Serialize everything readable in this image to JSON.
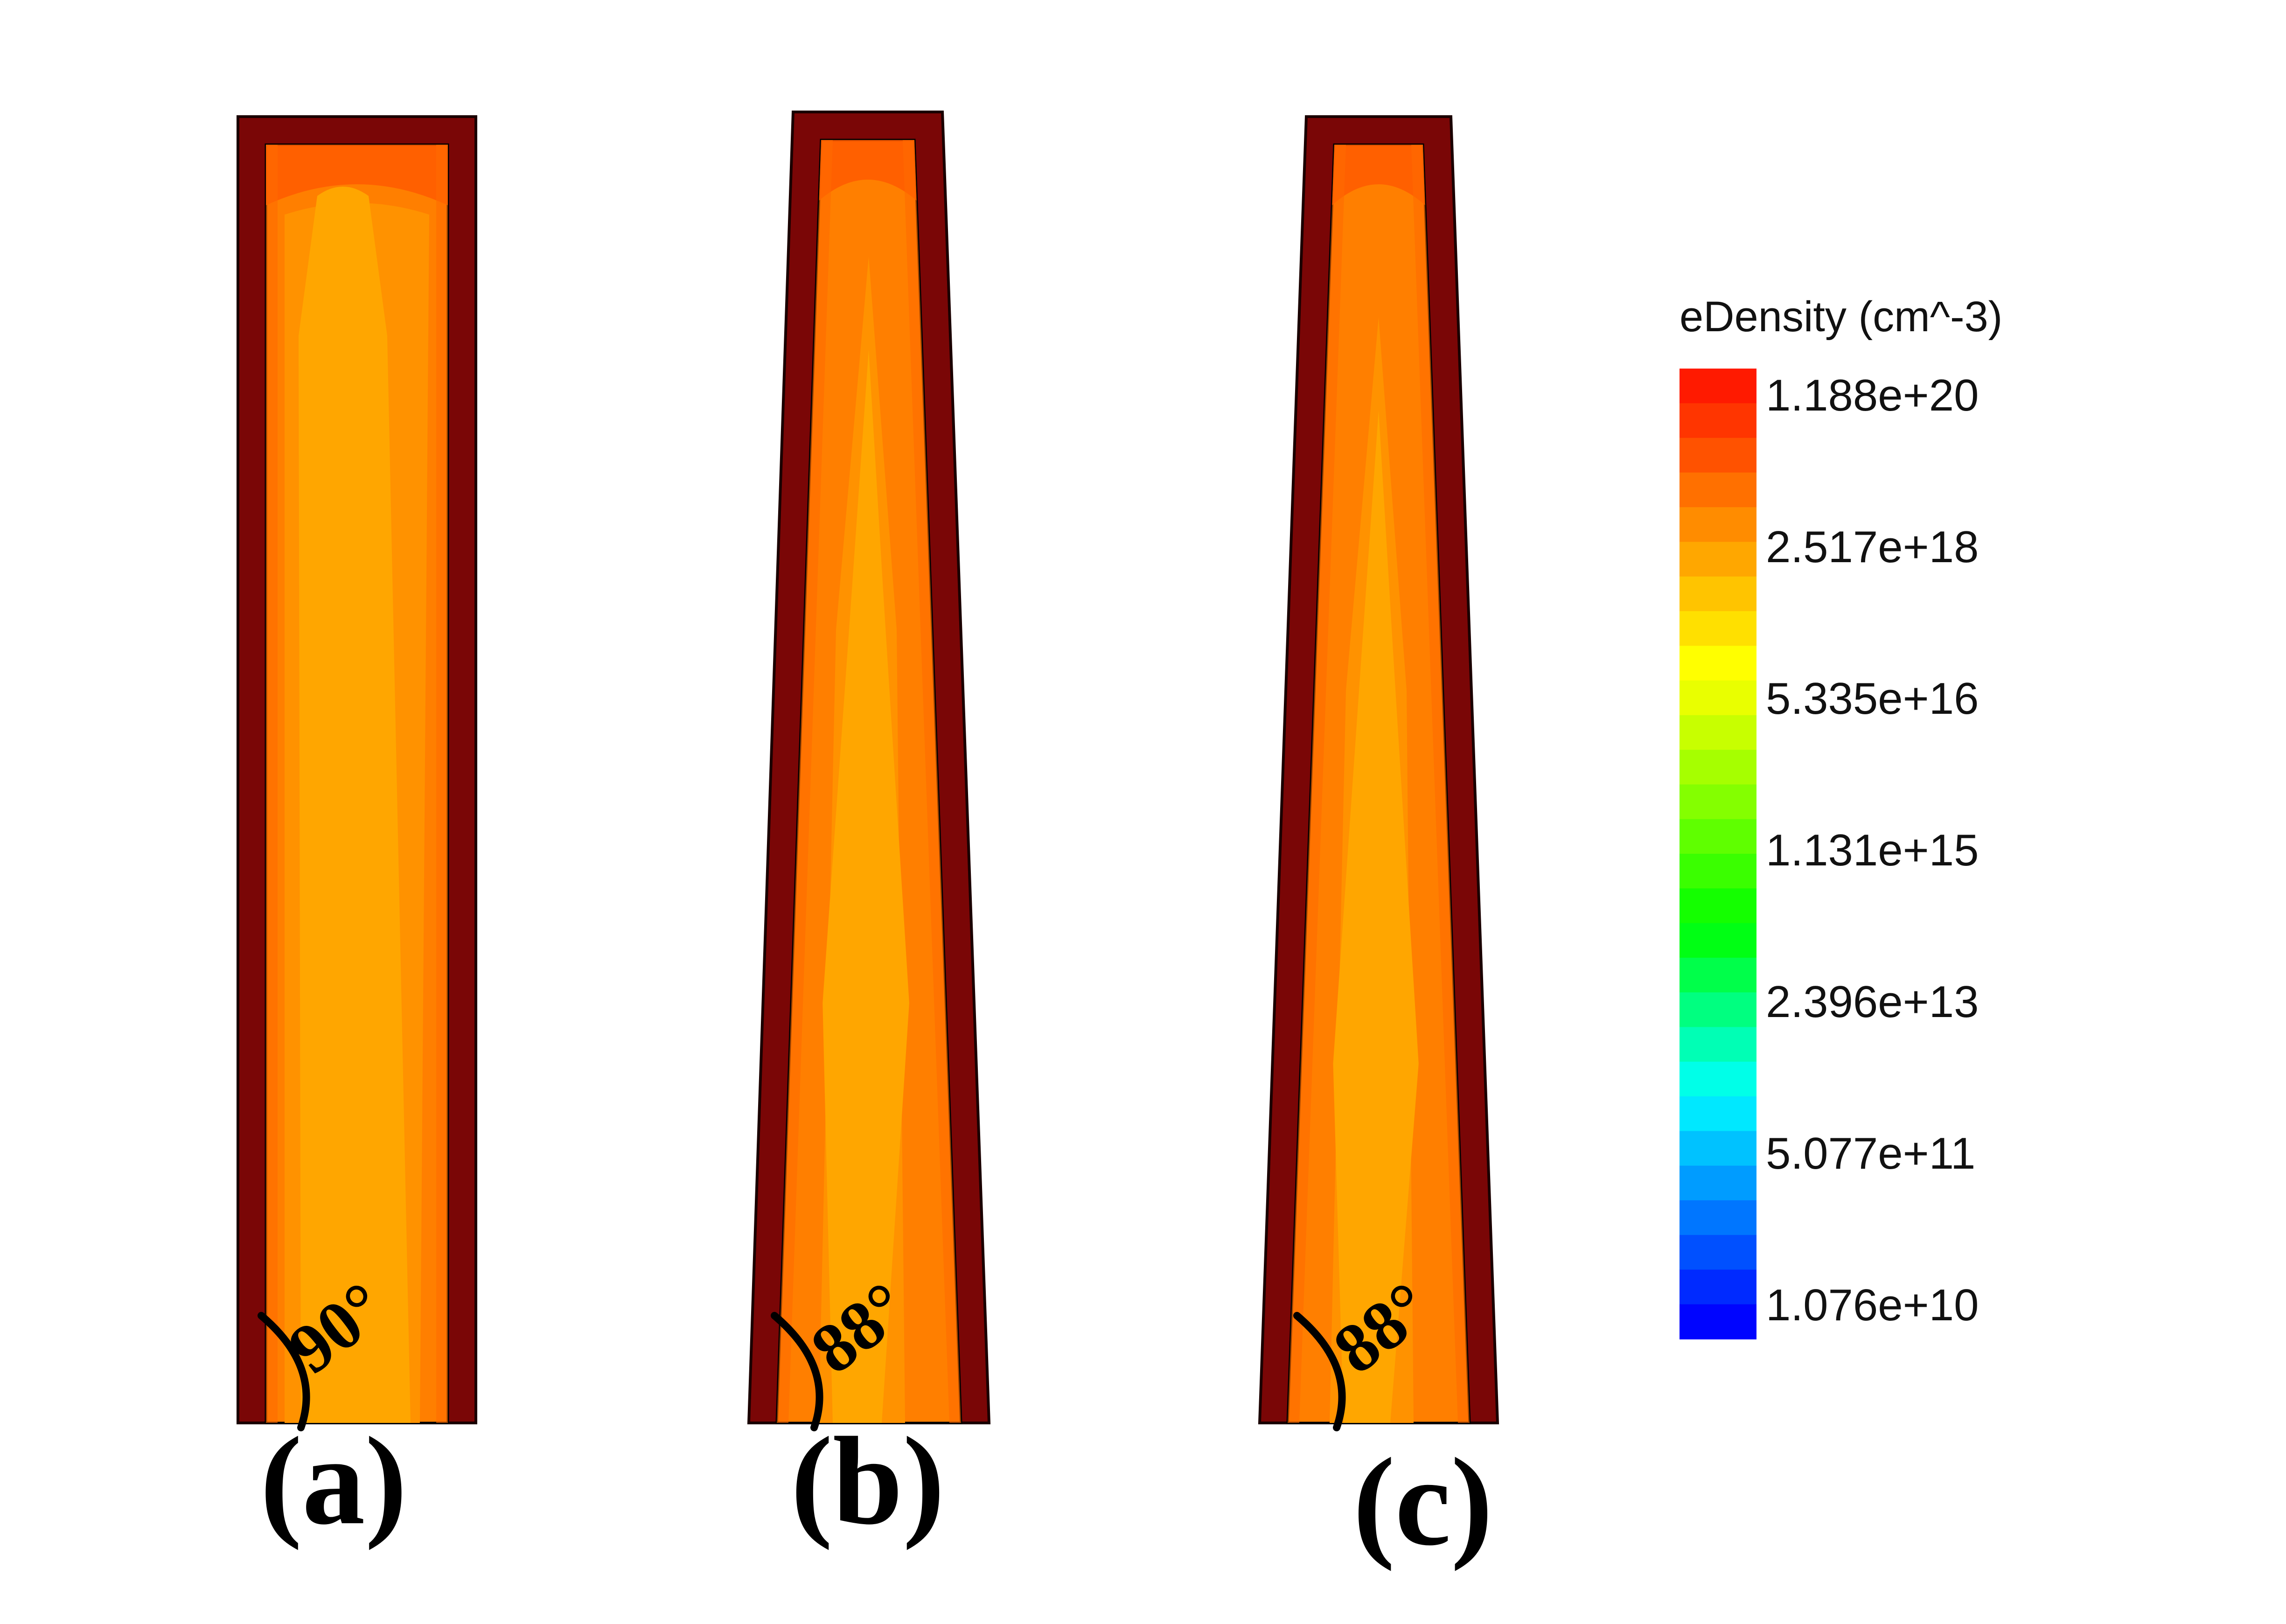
{
  "panels": [
    {
      "id": "a",
      "label": "(a)",
      "angle_label": "90°",
      "sidewall_angle_deg": 90
    },
    {
      "id": "b",
      "label": "(b)",
      "angle_label": "88°",
      "sidewall_angle_deg": 88
    },
    {
      "id": "c",
      "label": "(c)",
      "angle_label": "88°",
      "sidewall_angle_deg": 88
    }
  ],
  "legend": {
    "title": "eDensity (cm^-3)",
    "tick_labels": [
      "1.188e+20",
      "2.517e+18",
      "5.335e+16",
      "1.131e+15",
      "2.396e+13",
      "5.077e+11",
      "1.076e+10"
    ],
    "colors": [
      "#ff1a00",
      "#ff3500",
      "#ff5200",
      "#ff7000",
      "#ff8c00",
      "#ffa700",
      "#ffc400",
      "#ffe000",
      "#ffff00",
      "#e9ff00",
      "#c8ff00",
      "#a6ff00",
      "#84ff00",
      "#5fff00",
      "#3aff00",
      "#14ff00",
      "#00ff14",
      "#00ff4a",
      "#00ff80",
      "#00ffb5",
      "#00ffe8",
      "#00e8ff",
      "#00c2ff",
      "#009cff",
      "#0076ff",
      "#0050ff",
      "#002aff",
      "#0004ff"
    ]
  },
  "colors": {
    "shell": "#7a0606",
    "shell_edge": "#1a0000",
    "outer_region": "#ff7f00",
    "top_region": "#ff5a00",
    "inner_region": "#ffa600",
    "core_region": "#ffb100"
  }
}
